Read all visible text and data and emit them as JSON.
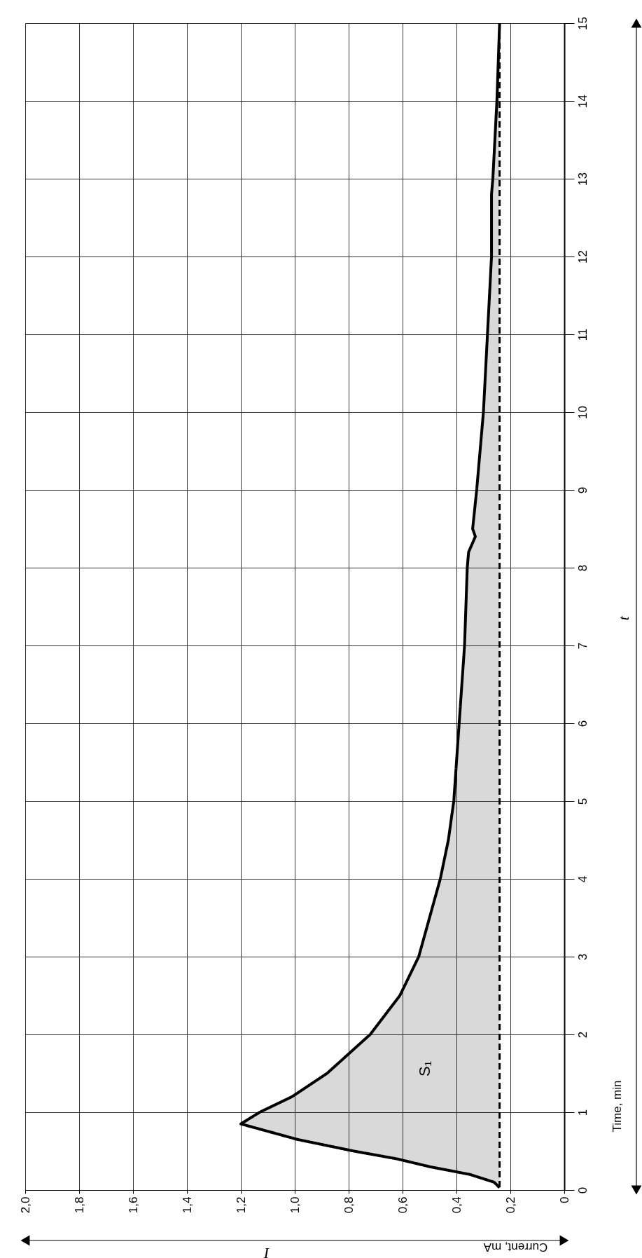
{
  "chart_data": {
    "type": "area",
    "xlabel": "Current, mA",
    "ylabel": "Time, min",
    "x": [
      0.24,
      0.26,
      0.35,
      0.5,
      0.62,
      0.78,
      0.99,
      1.2,
      1.13,
      1.01,
      0.88,
      0.72,
      0.61,
      0.54,
      0.5,
      0.46,
      0.43,
      0.41,
      0.4,
      0.39,
      0.37,
      0.36,
      0.355,
      0.33,
      0.34,
      0.325,
      0.3,
      0.285,
      0.27,
      0.27,
      0.265,
      0.25,
      0.24
    ],
    "series": [
      {
        "color": "#000000",
        "values": [
          0.03,
          0.1,
          0.2,
          0.3,
          0.4,
          0.5,
          0.65,
          0.85,
          1.0,
          1.2,
          1.5,
          2.0,
          2.5,
          3.0,
          3.5,
          4.0,
          4.5,
          5.0,
          5.5,
          6.0,
          7.0,
          8.0,
          8.2,
          8.4,
          8.5,
          9.0,
          10.0,
          11.0,
          12.0,
          12.8,
          13.0,
          14.0,
          15.0
        ]
      }
    ],
    "ylim": [
      0,
      15
    ],
    "yticks": [
      0,
      1,
      2,
      3,
      4,
      5,
      6,
      7,
      8,
      9,
      10,
      11,
      12,
      13,
      14,
      15
    ],
    "xlim": [
      2.0,
      0
    ],
    "xticks": [
      0,
      {
        "value": 0.2,
        "label": "0,2"
      },
      {
        "value": 0.4,
        "label": "0,4"
      },
      {
        "value": 0.6,
        "label": "0,6"
      },
      {
        "value": 0.8,
        "label": "0,8"
      },
      {
        "value": 1.0,
        "label": "1,0"
      },
      {
        "value": 1.2,
        "label": "1,2"
      },
      {
        "value": 1.4,
        "label": "1,4"
      },
      {
        "value": 1.6,
        "label": "1,6"
      },
      {
        "value": 1.8,
        "label": "1,8"
      },
      {
        "value": 2.0,
        "label": "2,0"
      }
    ],
    "ref_lines": [
      {
        "axis": "x",
        "value": 0.24,
        "color": "#000000",
        "line_style": "dashed"
      }
    ],
    "annotations": [
      "I",
      "t",
      "S₁"
    ],
    "grid": true,
    "line_style": "solid",
    "marker": "none"
  }
}
